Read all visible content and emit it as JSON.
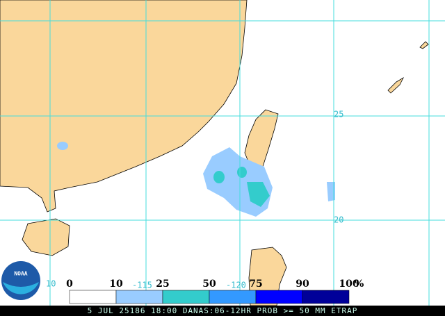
{
  "map": {
    "lat_labels": [
      "25",
      "20"
    ],
    "lon_labels": [
      "-115",
      "-120"
    ],
    "corner_label": "10",
    "logo": "NOAA",
    "legend": {
      "labels": [
        "0",
        "10",
        "25",
        "50",
        "75",
        "90",
        "100"
      ],
      "unit": "%",
      "colors": [
        "#ffffff",
        "#99ccff",
        "#33cccc",
        "#3399ff",
        "#0000ff",
        "#000099"
      ]
    },
    "footer": "5 JUL 25186 18:00 DANAS:06-12HR PROB >= 50 MM ETRAP"
  }
}
